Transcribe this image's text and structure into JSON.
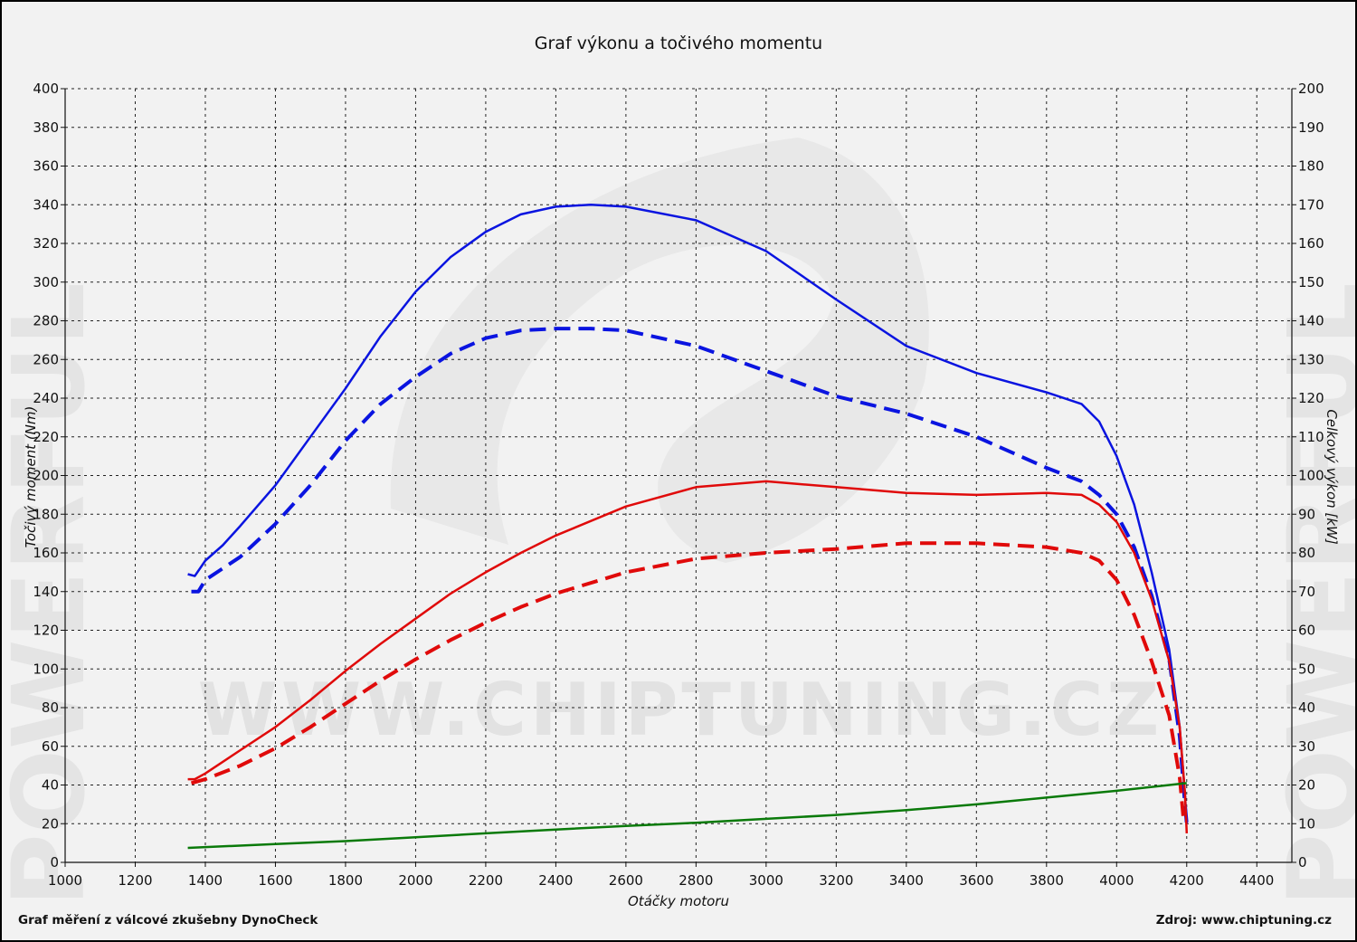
{
  "chart_data": {
    "type": "line",
    "title": "Graf výkonu a točivého momentu",
    "xlabel": "Otáčky motoru",
    "ylabel_left": "Točivý moment (Nm)",
    "ylabel_right": "Celkový výkon [kW]",
    "xlim": [
      1000,
      4500
    ],
    "ylim_left": [
      0,
      400
    ],
    "ylim_right": [
      0,
      200
    ],
    "x_ticks": [
      1000,
      1200,
      1400,
      1600,
      1800,
      2000,
      2200,
      2400,
      2600,
      2800,
      3000,
      3200,
      3400,
      3600,
      3800,
      4000,
      4200,
      4400
    ],
    "y_ticks_left": [
      0,
      20,
      40,
      60,
      80,
      100,
      120,
      140,
      160,
      180,
      200,
      220,
      240,
      260,
      280,
      300,
      320,
      340,
      360,
      380,
      400
    ],
    "y_ticks_right": [
      0,
      10,
      20,
      30,
      40,
      50,
      60,
      70,
      80,
      90,
      100,
      110,
      120,
      130,
      140,
      150,
      160,
      170,
      180,
      190,
      200
    ],
    "grid": true,
    "series": [
      {
        "axis": "left",
        "color": "#0a14e0",
        "dash": false,
        "points": [
          [
            1350,
            149
          ],
          [
            1370,
            148
          ],
          [
            1400,
            156
          ],
          [
            1450,
            164
          ],
          [
            1500,
            174
          ],
          [
            1600,
            195
          ],
          [
            1700,
            220
          ],
          [
            1800,
            245
          ],
          [
            1900,
            272
          ],
          [
            2000,
            295
          ],
          [
            2100,
            313
          ],
          [
            2200,
            326
          ],
          [
            2300,
            335
          ],
          [
            2400,
            339
          ],
          [
            2500,
            340
          ],
          [
            2600,
            339
          ],
          [
            2800,
            332
          ],
          [
            3000,
            316
          ],
          [
            3200,
            291
          ],
          [
            3400,
            267
          ],
          [
            3600,
            253
          ],
          [
            3800,
            243
          ],
          [
            3900,
            237
          ],
          [
            3950,
            228
          ],
          [
            4000,
            210
          ],
          [
            4050,
            185
          ],
          [
            4100,
            150
          ],
          [
            4150,
            110
          ],
          [
            4180,
            70
          ],
          [
            4195,
            35
          ],
          [
            4200,
            20
          ]
        ]
      },
      {
        "axis": "left",
        "color": "#0a14e0",
        "dash": true,
        "points": [
          [
            1360,
            140
          ],
          [
            1380,
            140
          ],
          [
            1400,
            146
          ],
          [
            1500,
            158
          ],
          [
            1600,
            175
          ],
          [
            1700,
            195
          ],
          [
            1800,
            218
          ],
          [
            1900,
            237
          ],
          [
            2000,
            251
          ],
          [
            2100,
            263
          ],
          [
            2200,
            271
          ],
          [
            2300,
            275
          ],
          [
            2400,
            276
          ],
          [
            2500,
            276
          ],
          [
            2600,
            275
          ],
          [
            2800,
            267
          ],
          [
            3000,
            254
          ],
          [
            3200,
            241
          ],
          [
            3400,
            232
          ],
          [
            3600,
            220
          ],
          [
            3800,
            204
          ],
          [
            3900,
            197
          ],
          [
            3950,
            190
          ],
          [
            4000,
            180
          ],
          [
            4050,
            163
          ],
          [
            4100,
            138
          ],
          [
            4150,
            105
          ],
          [
            4180,
            65
          ],
          [
            4195,
            30
          ],
          [
            4200,
            20
          ]
        ]
      },
      {
        "axis": "right",
        "color": "#e00a0a",
        "dash": false,
        "points": [
          [
            1350,
            21.5
          ],
          [
            1370,
            21.5
          ],
          [
            1400,
            23
          ],
          [
            1500,
            29
          ],
          [
            1600,
            35
          ],
          [
            1700,
            42
          ],
          [
            1800,
            49.5
          ],
          [
            1900,
            56.5
          ],
          [
            2000,
            63
          ],
          [
            2100,
            69.5
          ],
          [
            2200,
            75
          ],
          [
            2300,
            80
          ],
          [
            2400,
            84.5
          ],
          [
            2600,
            92
          ],
          [
            2800,
            97
          ],
          [
            3000,
            98.5
          ],
          [
            3200,
            97
          ],
          [
            3400,
            95.5
          ],
          [
            3600,
            95
          ],
          [
            3800,
            95.5
          ],
          [
            3900,
            95
          ],
          [
            3950,
            92.5
          ],
          [
            4000,
            88
          ],
          [
            4050,
            80
          ],
          [
            4100,
            68
          ],
          [
            4150,
            52
          ],
          [
            4180,
            35
          ],
          [
            4195,
            18
          ],
          [
            4200,
            7.5
          ]
        ]
      },
      {
        "axis": "right",
        "color": "#e00a0a",
        "dash": true,
        "points": [
          [
            1360,
            20.5
          ],
          [
            1400,
            21.5
          ],
          [
            1500,
            25
          ],
          [
            1600,
            29.5
          ],
          [
            1700,
            35
          ],
          [
            1800,
            41
          ],
          [
            1900,
            47
          ],
          [
            2000,
            52.5
          ],
          [
            2100,
            57.5
          ],
          [
            2200,
            62
          ],
          [
            2300,
            66
          ],
          [
            2400,
            69.5
          ],
          [
            2600,
            75
          ],
          [
            2800,
            78.5
          ],
          [
            3000,
            80
          ],
          [
            3200,
            81
          ],
          [
            3400,
            82.5
          ],
          [
            3600,
            82.5
          ],
          [
            3800,
            81.5
          ],
          [
            3900,
            80
          ],
          [
            3950,
            78
          ],
          [
            4000,
            73
          ],
          [
            4050,
            64
          ],
          [
            4100,
            52
          ],
          [
            4150,
            38
          ],
          [
            4180,
            22
          ],
          [
            4190,
            12
          ]
        ]
      },
      {
        "axis": "left",
        "color": "#0a7a0a",
        "dash": false,
        "points": [
          [
            1350,
            7.5
          ],
          [
            1600,
            9.5
          ],
          [
            1800,
            11
          ],
          [
            2000,
            13
          ],
          [
            2200,
            15
          ],
          [
            2400,
            17
          ],
          [
            2600,
            18.8
          ],
          [
            2800,
            20.5
          ],
          [
            3000,
            22.5
          ],
          [
            3200,
            24.5
          ],
          [
            3400,
            27
          ],
          [
            3600,
            30
          ],
          [
            3800,
            33.5
          ],
          [
            4000,
            37
          ],
          [
            4200,
            41
          ]
        ]
      }
    ]
  },
  "watermark": {
    "text": "WWW.CHIPTUNING.CZ",
    "side_text": "POWERFUL"
  },
  "footer": {
    "left": "Graf měření z válcové zkušebny DynoCheck",
    "right": "Zdroj: www.chiptuning.cz"
  }
}
